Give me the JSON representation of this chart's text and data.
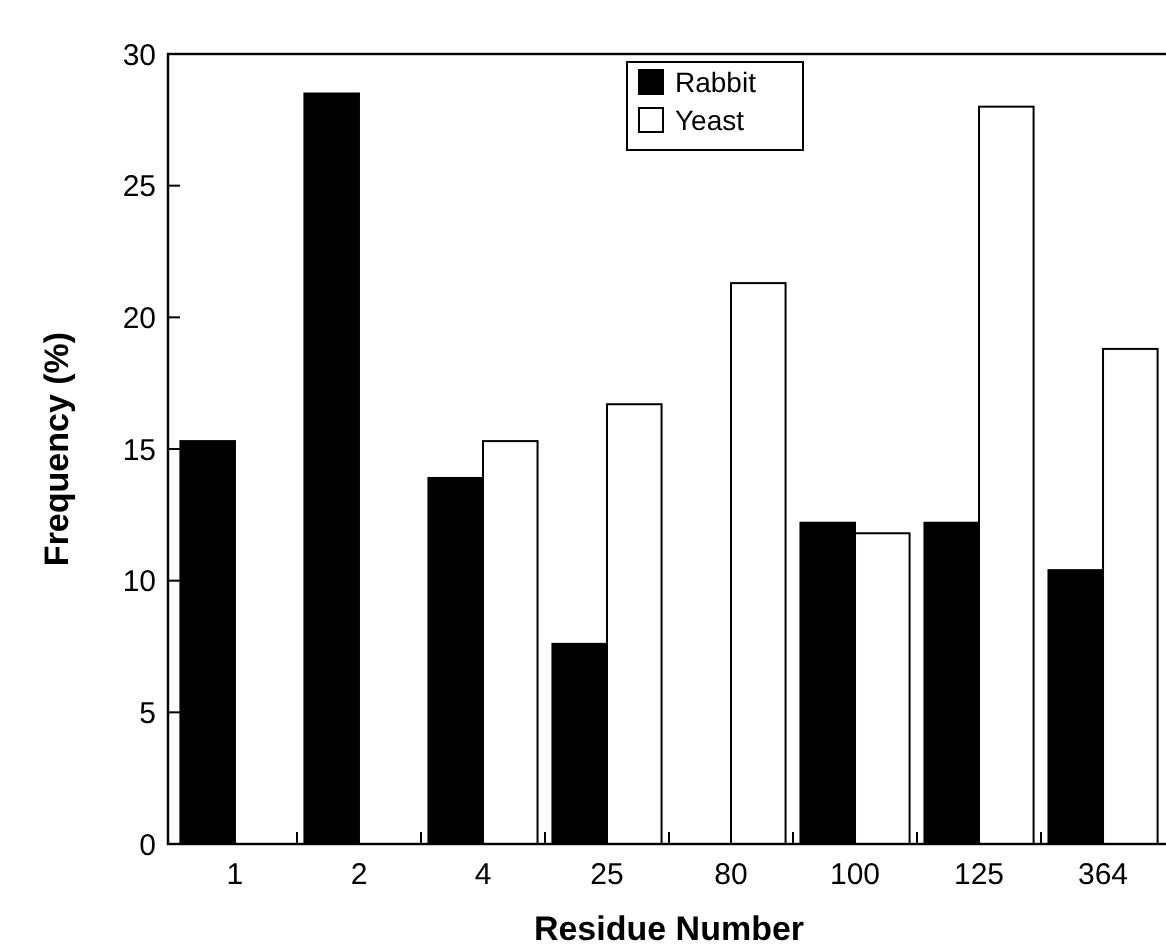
{
  "chart_data": {
    "type": "bar",
    "xlabel": "Residue Number",
    "ylabel": "Frequency (%)",
    "categories": [
      "1",
      "2",
      "4",
      "25",
      "80",
      "100",
      "125",
      "364"
    ],
    "series": [
      {
        "name": "Rabbit",
        "color": "#000000",
        "values": [
          15.3,
          28.5,
          13.9,
          7.6,
          null,
          12.2,
          12.2,
          10.4
        ]
      },
      {
        "name": "Yeast",
        "color": "#ffffff",
        "values": [
          null,
          null,
          15.3,
          16.7,
          21.3,
          11.8,
          28.0,
          18.8
        ]
      }
    ],
    "ylim": [
      0,
      30
    ],
    "yticks": [
      0,
      5,
      10,
      15,
      20,
      25,
      30
    ],
    "legend": "top",
    "grid": false
  }
}
